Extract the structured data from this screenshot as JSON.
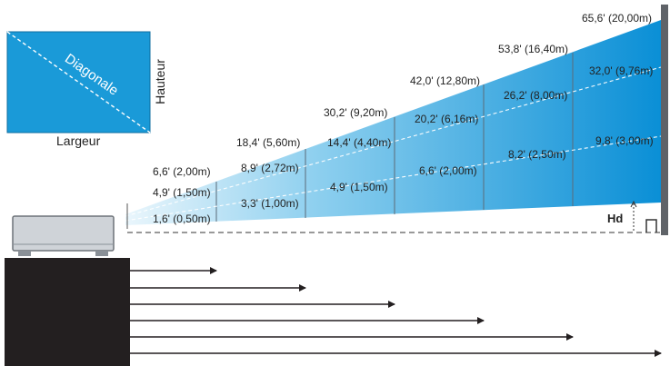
{
  "labels": {
    "diagonal": "Diagonale",
    "width": "Largeur",
    "height": "Hauteur",
    "hd": "Hd"
  },
  "distances": [
    "1,6' (0,50m)",
    "3,3' (1,00m)",
    "4,9' (1,50m)",
    "6,6' (2,00m)",
    "8,2' (2,50m)",
    "9,8' (3,00m)"
  ],
  "widths": [
    "4,9' (1,50m)",
    "8,9' (2,72m)",
    "14,4' (4,40m)",
    "20,2' (6,16m)",
    "26,2' (8,00m)",
    "32,0' (9,76m)"
  ],
  "diagonals": [
    "6,6' (2,00m)",
    "18,4' (5,60m)",
    "30,2' (9,20m)",
    "42,0' (12,80m)",
    "53,8' (16,40m)",
    "65,6' (20,00m)"
  ],
  "colors": {
    "screen_box": "#1a9ad8",
    "beam_light": "#dff1fb",
    "beam_dark": "#0a8fd6",
    "projector_body": "#cfd3d8",
    "base_block": "#231f20",
    "wall": "#5f6368"
  }
}
